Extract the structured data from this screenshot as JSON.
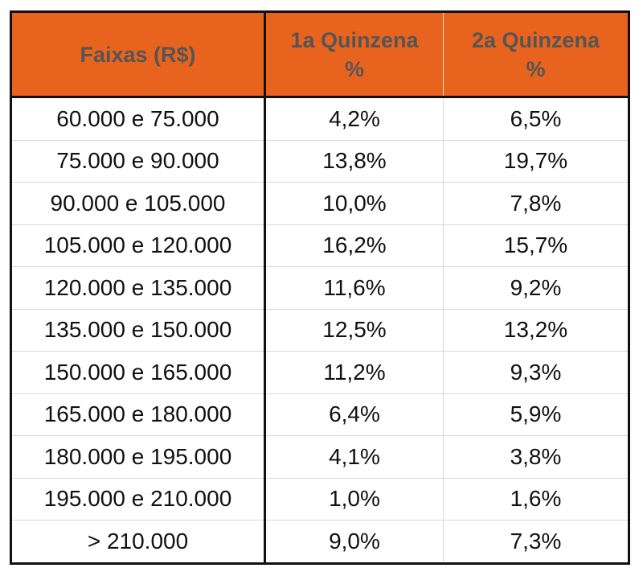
{
  "chart_data": {
    "type": "table",
    "columns": [
      "Faixas (R$)",
      "1a Quinzena %",
      "2a Quinzena %"
    ],
    "header_lines": [
      [
        "Faixas (R$)"
      ],
      [
        "1a Quinzena",
        "%"
      ],
      [
        "2a Quinzena",
        "%"
      ]
    ],
    "rows": [
      [
        "60.000 e 75.000",
        "4,2%",
        "6,5%"
      ],
      [
        "75.000 e 90.000",
        "13,8%",
        "19,7%"
      ],
      [
        "90.000 e 105.000",
        "10,0%",
        "7,8%"
      ],
      [
        "105.000 e 120.000",
        "16,2%",
        "15,7%"
      ],
      [
        "120.000 e 135.000",
        "11,6%",
        "9,2%"
      ],
      [
        "135.000 e 150.000",
        "12,5%",
        "13,2%"
      ],
      [
        "150.000 e 165.000",
        "11,2%",
        "9,3%"
      ],
      [
        "165.000 e 180.000",
        "6,4%",
        "5,9%"
      ],
      [
        "180.000 e 195.000",
        "4,1%",
        "3,8%"
      ],
      [
        "195.000 e 210.000",
        "1,0%",
        "1,6%"
      ],
      [
        "> 210.000",
        "9,0%",
        "7,3%"
      ]
    ],
    "colors": {
      "header_bg": "#E8641E",
      "header_text": "#555555",
      "border": "#111111"
    }
  }
}
